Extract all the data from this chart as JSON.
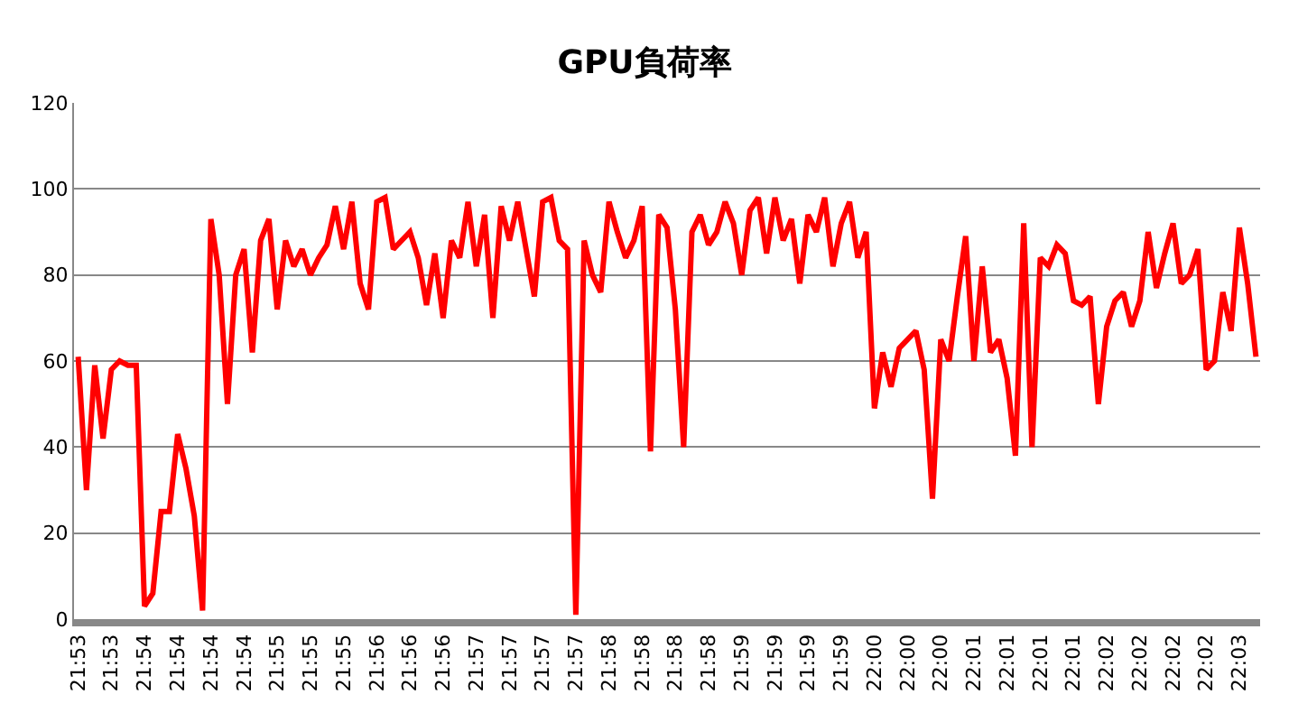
{
  "chart_data": {
    "type": "line",
    "title": "GPU負荷率",
    "categories": [
      "21:53",
      null,
      null,
      null,
      "21:53",
      null,
      null,
      null,
      "21:54",
      null,
      null,
      null,
      "21:54",
      null,
      null,
      null,
      "21:54",
      null,
      null,
      null,
      "21:54",
      null,
      null,
      null,
      "21:55",
      null,
      null,
      null,
      "21:55",
      null,
      null,
      null,
      "21:55",
      null,
      null,
      null,
      "21:56",
      null,
      null,
      null,
      "21:56",
      null,
      null,
      null,
      "21:56",
      null,
      null,
      null,
      "21:57",
      null,
      null,
      null,
      "21:57",
      null,
      null,
      null,
      "21:57",
      null,
      null,
      null,
      "21:57",
      null,
      null,
      null,
      "21:58",
      null,
      null,
      null,
      "21:58",
      null,
      null,
      null,
      "21:58",
      null,
      null,
      null,
      "21:58",
      null,
      null,
      null,
      "21:59",
      null,
      null,
      null,
      "21:59",
      null,
      null,
      null,
      "21:59",
      null,
      null,
      null,
      "21:59",
      null,
      null,
      null,
      "22:00",
      null,
      null,
      null,
      "22:00",
      null,
      null,
      null,
      "22:00",
      null,
      null,
      null,
      "22:01",
      null,
      null,
      null,
      "22:01",
      null,
      null,
      null,
      "22:01",
      null,
      null,
      null,
      "22:01",
      null,
      null,
      null,
      "22:02",
      null,
      null,
      null,
      "22:02",
      null,
      null,
      null,
      "22:02",
      null,
      null,
      null,
      "22:02",
      null,
      null,
      null,
      "22:03",
      null,
      null
    ],
    "series": [
      {
        "color": "#ff0000",
        "values": [
          61,
          30,
          59,
          42,
          58,
          60,
          59,
          59,
          3,
          6,
          25,
          25,
          43,
          35,
          24,
          2,
          93,
          80,
          50,
          80,
          86,
          62,
          88,
          93,
          72,
          88,
          82,
          86,
          80,
          84,
          87,
          96,
          86,
          97,
          78,
          72,
          97,
          98,
          86,
          88,
          90,
          84,
          73,
          85,
          70,
          88,
          84,
          97,
          82,
          94,
          70,
          96,
          88,
          97,
          86,
          75,
          97,
          98,
          88,
          86,
          1,
          88,
          80,
          76,
          97,
          90,
          84,
          88,
          96,
          39,
          94,
          91,
          72,
          40,
          90,
          94,
          87,
          90,
          97,
          92,
          80,
          95,
          98,
          85,
          98,
          88,
          93,
          78,
          94,
          90,
          98,
          82,
          92,
          97,
          84,
          90,
          49,
          62,
          54,
          63,
          65,
          67,
          58,
          28,
          65,
          60,
          75,
          89,
          60,
          82,
          62,
          65,
          56,
          38,
          92,
          40,
          84,
          82,
          87,
          85,
          74,
          73,
          75,
          50,
          68,
          74,
          76,
          68,
          74,
          90,
          77,
          85,
          92,
          78,
          80,
          86,
          58,
          60,
          76,
          67,
          91,
          78,
          61
        ]
      }
    ],
    "ylim": [
      0,
      120
    ],
    "yticks": [
      0,
      20,
      40,
      60,
      80,
      100,
      120
    ],
    "grid": "y",
    "legend": false,
    "marker": "none",
    "line_style": "solid"
  }
}
